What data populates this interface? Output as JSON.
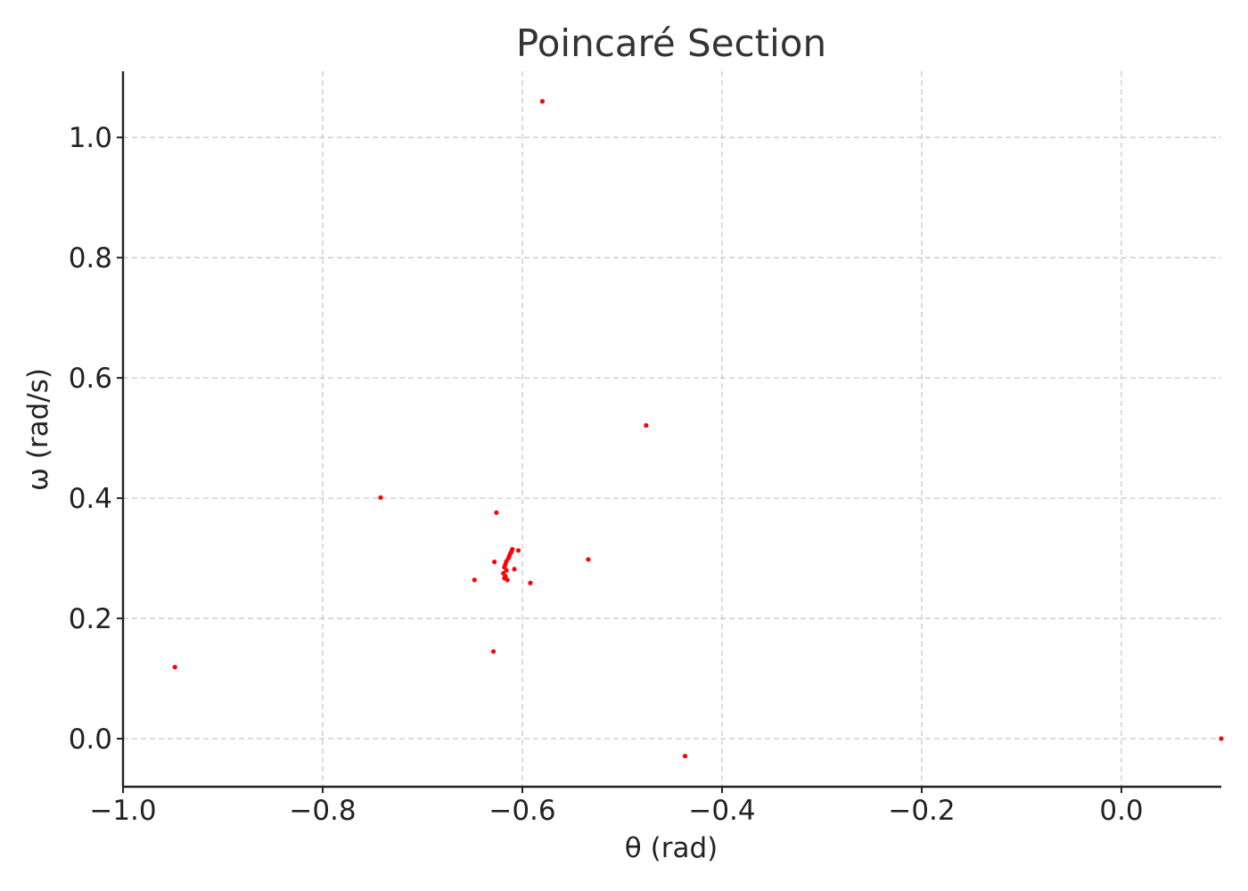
{
  "chart_data": {
    "type": "scatter",
    "title": "Poincaré Section",
    "xlabel": "θ (rad)",
    "ylabel": "ω (rad/s)",
    "xlim": [
      -1.0,
      0.1
    ],
    "ylim": [
      -0.08,
      1.11
    ],
    "x_ticks": [
      -1.0,
      -0.8,
      -0.6,
      -0.4,
      -0.2,
      0.0
    ],
    "x_tick_labels": [
      "−1.0",
      "−0.8",
      "−0.6",
      "−0.4",
      "−0.2",
      "0.0"
    ],
    "y_ticks": [
      0.0,
      0.2,
      0.4,
      0.6,
      0.8,
      1.0
    ],
    "y_tick_labels": [
      "0.0",
      "0.2",
      "0.4",
      "0.6",
      "0.8",
      "1.0"
    ],
    "grid": true,
    "marker_color": "#ff0000",
    "series": [
      {
        "points": [
          {
            "x": 0.1,
            "y": 0.0
          },
          {
            "x": -0.948,
            "y": 0.119
          },
          {
            "x": -0.742,
            "y": 0.401
          },
          {
            "x": -0.58,
            "y": 1.06
          },
          {
            "x": -0.476,
            "y": 0.521
          },
          {
            "x": -0.437,
            "y": -0.029
          },
          {
            "x": -0.534,
            "y": 0.298
          },
          {
            "x": -0.626,
            "y": 0.376
          },
          {
            "x": -0.628,
            "y": 0.294
          },
          {
            "x": -0.648,
            "y": 0.264
          },
          {
            "x": -0.629,
            "y": 0.145
          },
          {
            "x": -0.592,
            "y": 0.259
          },
          {
            "x": -0.604,
            "y": 0.313
          },
          {
            "x": -0.61,
            "y": 0.315
          },
          {
            "x": -0.611,
            "y": 0.311
          },
          {
            "x": -0.612,
            "y": 0.308
          },
          {
            "x": -0.613,
            "y": 0.304
          },
          {
            "x": -0.614,
            "y": 0.3
          },
          {
            "x": -0.616,
            "y": 0.295
          },
          {
            "x": -0.617,
            "y": 0.29
          },
          {
            "x": -0.618,
            "y": 0.285
          },
          {
            "x": -0.616,
            "y": 0.28
          },
          {
            "x": -0.619,
            "y": 0.275
          },
          {
            "x": -0.617,
            "y": 0.27
          },
          {
            "x": -0.618,
            "y": 0.267
          },
          {
            "x": -0.615,
            "y": 0.264
          },
          {
            "x": -0.608,
            "y": 0.282
          }
        ]
      }
    ]
  }
}
